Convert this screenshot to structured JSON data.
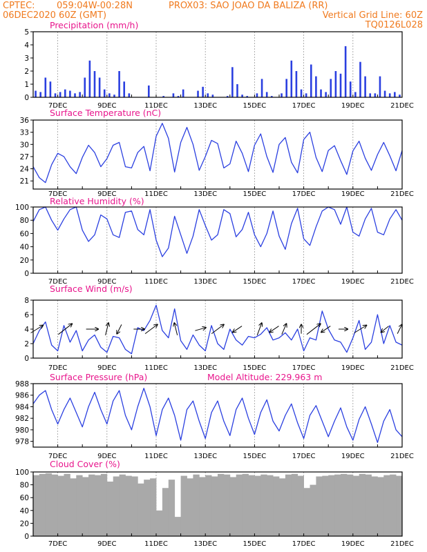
{
  "header": {
    "line1_left": "CPTEC:",
    "line1_coords": "059:04W-00:28N",
    "line1_station": "PROX03: SAO JOAO DA BALIZA (RR)",
    "line2_left": "06DEC2020 60Z (GMT)",
    "line2_right": "Vertical Grid Line: 60Z",
    "line3_right": "TQ0126L028"
  },
  "colors": {
    "header": "#f07a1e",
    "panel_title": "#e8158c",
    "series": "#2a3fe0",
    "cloud": "#a9a9a9",
    "grid": "#9a9a9a"
  },
  "x_ticks": [
    "7DEC",
    "9DEC",
    "11DEC",
    "13DEC",
    "15DEC",
    "17DEC",
    "19DEC",
    "21DEC"
  ],
  "chart_data": [
    {
      "type": "bar",
      "title": "Precipitation (mm/h)",
      "ylim": [
        0,
        5
      ],
      "yticks": [
        0,
        1,
        2,
        3,
        4,
        5
      ],
      "x": [
        6.1,
        6.3,
        6.5,
        6.7,
        6.9,
        7.1,
        7.3,
        7.5,
        7.7,
        7.9,
        8.1,
        8.3,
        8.5,
        8.7,
        8.9,
        9.1,
        9.3,
        9.5,
        9.7,
        9.9,
        10.1,
        10.3,
        10.5,
        10.7,
        10.9,
        11.1,
        11.3,
        11.5,
        11.7,
        11.9,
        12.1,
        12.3,
        12.5,
        12.7,
        12.9,
        13.1,
        13.3,
        13.5,
        13.7,
        13.9,
        14.1,
        14.3,
        14.5,
        14.7,
        14.9,
        15.1,
        15.3,
        15.5,
        15.7,
        15.9,
        16.1,
        16.3,
        16.5,
        16.7,
        16.9,
        17.1,
        17.3,
        17.5,
        17.7,
        17.9,
        18.1,
        18.3,
        18.5,
        18.7,
        18.9,
        19.1,
        19.3,
        19.5,
        19.7,
        19.9,
        20.1,
        20.3,
        20.5,
        20.7,
        20.9
      ],
      "values": [
        0.5,
        0.4,
        1.5,
        1.2,
        0.3,
        0.4,
        0.6,
        0.5,
        0.3,
        0.4,
        1.5,
        2.8,
        2.0,
        1.5,
        0.6,
        0.3,
        0.2,
        2.0,
        1.2,
        0.3,
        0,
        0,
        0,
        0.9,
        0,
        0,
        0.1,
        0,
        0.3,
        0.1,
        0.6,
        0,
        0,
        0.5,
        0.8,
        0.3,
        0.2,
        0,
        0,
        0.1,
        2.3,
        1.0,
        0.2,
        0.1,
        0,
        0.3,
        1.4,
        0.4,
        0.1,
        0,
        0.3,
        1.4,
        2.8,
        2.0,
        0.6,
        0.3,
        2.5,
        1.6,
        0.6,
        0.4,
        1.4,
        2.0,
        1.8,
        3.9,
        1.2,
        0.4,
        2.7,
        1.6,
        0.3,
        0.3,
        1.6,
        0.5,
        0.3,
        0.4,
        0.2
      ]
    },
    {
      "type": "line",
      "title": "Surface Temperature (nC)",
      "ylim": [
        19,
        36
      ],
      "yticks": [
        21,
        24,
        27,
        30,
        33,
        36
      ],
      "x": [
        6.0,
        6.25,
        6.5,
        6.75,
        7.0,
        7.25,
        7.5,
        7.75,
        8.0,
        8.25,
        8.5,
        8.75,
        9.0,
        9.25,
        9.5,
        9.75,
        10.0,
        10.25,
        10.5,
        10.75,
        11.0,
        11.25,
        11.5,
        11.75,
        12.0,
        12.25,
        12.5,
        12.75,
        13.0,
        13.25,
        13.5,
        13.75,
        14.0,
        14.25,
        14.5,
        14.75,
        15.0,
        15.25,
        15.5,
        15.75,
        16.0,
        16.25,
        16.5,
        16.75,
        17.0,
        17.25,
        17.5,
        17.75,
        18.0,
        18.25,
        18.5,
        18.75,
        19.0,
        19.25,
        19.5,
        19.75,
        20.0,
        20.25,
        20.5,
        20.75,
        21.0
      ],
      "values": [
        24.5,
        21.8,
        20.6,
        25.0,
        27.8,
        27.0,
        24.5,
        22.8,
        26.8,
        29.8,
        28.0,
        24.5,
        26.5,
        29.8,
        30.5,
        24.5,
        24.2,
        28.0,
        29.5,
        23.5,
        32.0,
        35.2,
        31.5,
        23.2,
        30.5,
        34.2,
        30.0,
        23.6,
        27.0,
        31.0,
        30.2,
        24.2,
        25.2,
        30.8,
        27.8,
        23.3,
        29.8,
        32.6,
        27.0,
        23.1,
        30.0,
        31.7,
        25.6,
        23.0,
        31.2,
        33.0,
        26.8,
        23.3,
        28.5,
        29.7,
        26.0,
        22.6,
        28.4,
        30.8,
        26.6,
        23.6,
        27.5,
        30.5,
        27.2,
        23.5,
        28.5
      ]
    },
    {
      "type": "line",
      "title": "Relative Humidity (%)",
      "ylim": [
        0,
        100
      ],
      "yticks": [
        0,
        20,
        40,
        60,
        80,
        100
      ],
      "x": [
        6.0,
        6.25,
        6.5,
        6.75,
        7.0,
        7.25,
        7.5,
        7.75,
        8.0,
        8.25,
        8.5,
        8.75,
        9.0,
        9.25,
        9.5,
        9.75,
        10.0,
        10.25,
        10.5,
        10.75,
        11.0,
        11.25,
        11.5,
        11.75,
        12.0,
        12.25,
        12.5,
        12.75,
        13.0,
        13.25,
        13.5,
        13.75,
        14.0,
        14.25,
        14.5,
        14.75,
        15.0,
        15.25,
        15.5,
        15.75,
        16.0,
        16.25,
        16.5,
        16.75,
        17.0,
        17.25,
        17.5,
        17.75,
        18.0,
        18.25,
        18.5,
        18.75,
        19.0,
        19.25,
        19.5,
        19.75,
        20.0,
        20.25,
        20.5,
        20.75,
        21.0
      ],
      "values": [
        78,
        96,
        100,
        80,
        65,
        82,
        96,
        100,
        65,
        48,
        58,
        88,
        82,
        58,
        54,
        92,
        94,
        66,
        58,
        96,
        50,
        25,
        38,
        86,
        58,
        30,
        56,
        96,
        72,
        50,
        58,
        96,
        90,
        55,
        66,
        92,
        58,
        40,
        60,
        94,
        56,
        36,
        75,
        98,
        52,
        42,
        70,
        94,
        100,
        96,
        74,
        100,
        62,
        56,
        82,
        98,
        62,
        58,
        82,
        96,
        80
      ]
    },
    {
      "type": "line",
      "title": "Surface Wind (m/s)",
      "ylim": [
        0,
        8
      ],
      "yticks": [
        0,
        2,
        4,
        6,
        8
      ],
      "x": [
        6.0,
        6.25,
        6.5,
        6.75,
        7.0,
        7.25,
        7.5,
        7.75,
        8.0,
        8.25,
        8.5,
        8.75,
        9.0,
        9.25,
        9.5,
        9.75,
        10.0,
        10.25,
        10.5,
        10.75,
        11.0,
        11.25,
        11.5,
        11.75,
        12.0,
        12.25,
        12.5,
        12.75,
        13.0,
        13.25,
        13.5,
        13.75,
        14.0,
        14.25,
        14.5,
        14.75,
        15.0,
        15.25,
        15.5,
        15.75,
        16.0,
        16.25,
        16.5,
        16.75,
        17.0,
        17.25,
        17.5,
        17.75,
        18.0,
        18.25,
        18.5,
        18.75,
        19.0,
        19.25,
        19.5,
        19.75,
        20.0,
        20.25,
        20.5,
        20.75,
        21.0
      ],
      "values": [
        2.0,
        3.8,
        5.0,
        1.8,
        1.0,
        4.5,
        2.2,
        3.8,
        1.0,
        2.5,
        3.2,
        1.5,
        0.8,
        3.0,
        2.8,
        1.2,
        0.6,
        4.2,
        3.8,
        5.2,
        7.3,
        3.8,
        2.8,
        6.8,
        2.4,
        1.2,
        3.2,
        1.8,
        1.0,
        4.5,
        2.0,
        1.2,
        4.0,
        2.5,
        1.8,
        3.0,
        2.8,
        3.3,
        4.2,
        2.5,
        2.8,
        3.5,
        2.5,
        4.0,
        1.0,
        2.8,
        2.5,
        6.5,
        4.0,
        2.5,
        2.2,
        0.8,
        2.8,
        5.2,
        1.2,
        2.2,
        6.0,
        2.0,
        4.5,
        2.2,
        1.8
      ],
      "vectors": [
        {
          "x": 6.15,
          "u": 0.8,
          "v": 0.5
        },
        {
          "x": 7.3,
          "u": 0.9,
          "v": 0.7
        },
        {
          "x": 8.4,
          "u": 0.8,
          "v": 0.0
        },
        {
          "x": 9.0,
          "u": 0.2,
          "v": 0.8
        },
        {
          "x": 9.5,
          "u": -0.3,
          "v": -0.6
        },
        {
          "x": 10.3,
          "u": 0.7,
          "v": 0.0
        },
        {
          "x": 10.8,
          "u": 0.8,
          "v": 0.6
        },
        {
          "x": 11.8,
          "u": -0.2,
          "v": 0.8
        },
        {
          "x": 12.8,
          "u": 0.7,
          "v": 0.2
        },
        {
          "x": 13.5,
          "u": 0.8,
          "v": 0.6
        },
        {
          "x": 14.3,
          "u": -0.6,
          "v": -0.4
        },
        {
          "x": 15.2,
          "u": 0.3,
          "v": 0.8
        },
        {
          "x": 15.8,
          "u": -0.6,
          "v": -0.4
        },
        {
          "x": 16.2,
          "u": 0.3,
          "v": 0.7
        },
        {
          "x": 16.9,
          "u": 0.0,
          "v": 0.6
        },
        {
          "x": 17.4,
          "u": 0.9,
          "v": 0.7
        },
        {
          "x": 17.9,
          "u": -0.6,
          "v": -0.4
        },
        {
          "x": 18.6,
          "u": 0.6,
          "v": 0.0
        },
        {
          "x": 19.3,
          "u": 0.8,
          "v": 0.5
        },
        {
          "x": 20.3,
          "u": -0.5,
          "v": -0.4
        },
        {
          "x": 20.9,
          "u": 0.3,
          "v": 0.6
        }
      ]
    },
    {
      "type": "line",
      "title": "Surface Pressure (hPa)",
      "annotation": "Model Altitude: 229.963 m",
      "ylim": [
        977,
        988
      ],
      "yticks": [
        978,
        980,
        982,
        984,
        986,
        988
      ],
      "x": [
        6.0,
        6.25,
        6.5,
        6.75,
        7.0,
        7.25,
        7.5,
        7.75,
        8.0,
        8.25,
        8.5,
        8.75,
        9.0,
        9.25,
        9.5,
        9.75,
        10.0,
        10.25,
        10.5,
        10.75,
        11.0,
        11.25,
        11.5,
        11.75,
        12.0,
        12.25,
        12.5,
        12.75,
        13.0,
        13.25,
        13.5,
        13.75,
        14.0,
        14.25,
        14.5,
        14.75,
        15.0,
        15.25,
        15.5,
        15.75,
        16.0,
        16.25,
        16.5,
        16.75,
        17.0,
        17.25,
        17.5,
        17.75,
        18.0,
        18.25,
        18.5,
        18.75,
        19.0,
        19.25,
        19.5,
        19.75,
        20.0,
        20.25,
        20.5,
        20.75,
        21.0
      ],
      "values": [
        984.5,
        986.0,
        986.8,
        983.5,
        981.0,
        983.5,
        985.5,
        983.0,
        980.5,
        984.0,
        986.5,
        983.5,
        981.0,
        985.0,
        986.8,
        982.5,
        980.0,
        984.0,
        987.2,
        984.0,
        979.0,
        983.5,
        985.5,
        982.5,
        978.2,
        983.5,
        985.0,
        981.5,
        978.5,
        983.0,
        985.0,
        981.5,
        979.0,
        983.5,
        985.5,
        982.0,
        979.2,
        983.0,
        985.2,
        981.5,
        979.8,
        982.5,
        984.5,
        981.2,
        978.5,
        982.5,
        984.2,
        981.5,
        978.8,
        981.5,
        983.8,
        980.5,
        978.2,
        981.8,
        984.0,
        981.0,
        977.8,
        981.5,
        983.5,
        980.0,
        978.8
      ]
    },
    {
      "type": "bar",
      "title": "Cloud Cover (%)",
      "ylim": [
        0,
        100
      ],
      "yticks": [
        0,
        20,
        40,
        60,
        80,
        100
      ],
      "x": [
        6.0,
        6.25,
        6.5,
        6.75,
        7.0,
        7.25,
        7.5,
        7.75,
        8.0,
        8.25,
        8.5,
        8.75,
        9.0,
        9.25,
        9.5,
        9.75,
        10.0,
        10.25,
        10.5,
        10.75,
        11.0,
        11.25,
        11.5,
        11.75,
        12.0,
        12.25,
        12.5,
        12.75,
        13.0,
        13.25,
        13.5,
        13.75,
        14.0,
        14.25,
        14.5,
        14.75,
        15.0,
        15.25,
        15.5,
        15.75,
        16.0,
        16.25,
        16.5,
        16.75,
        17.0,
        17.25,
        17.5,
        17.75,
        18.0,
        18.25,
        18.5,
        18.75,
        19.0,
        19.25,
        19.5,
        19.75,
        20.0,
        20.25,
        20.5,
        20.75
      ],
      "values": [
        95,
        97,
        98,
        96,
        94,
        97,
        90,
        95,
        92,
        96,
        95,
        97,
        85,
        93,
        96,
        94,
        93,
        82,
        88,
        90,
        40,
        75,
        88,
        30,
        94,
        90,
        96,
        92,
        95,
        93,
        97,
        96,
        92,
        96,
        97,
        95,
        94,
        96,
        95,
        93,
        90,
        96,
        97,
        94,
        75,
        80,
        93,
        94,
        95,
        96,
        97,
        96,
        94,
        97,
        96,
        93,
        92,
        95,
        96,
        94
      ]
    }
  ]
}
